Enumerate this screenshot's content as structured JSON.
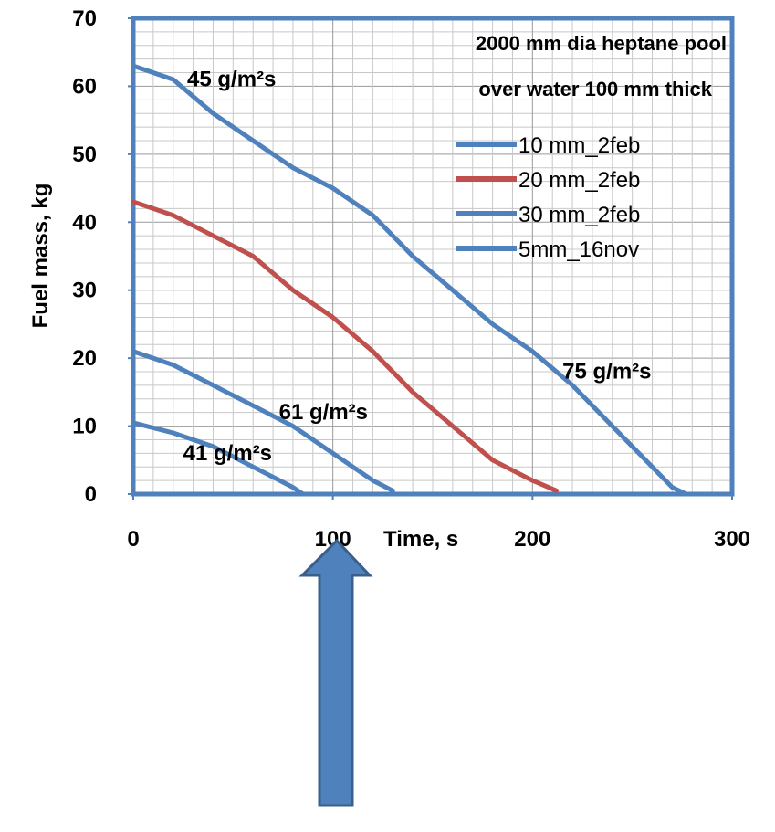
{
  "chart_data": {
    "type": "line",
    "title_lines": [
      "2000 mm dia heptane pool",
      "over water 100 mm thick"
    ],
    "xlabel": "Time, s",
    "ylabel": "Fuel mass, kg",
    "xlim": [
      0,
      300
    ],
    "ylim": [
      0,
      70
    ],
    "xticks": [
      0,
      100,
      200,
      300
    ],
    "yticks": [
      0,
      10,
      20,
      30,
      40,
      50,
      60,
      70
    ],
    "grid": true,
    "legend_position": "top-right",
    "series": [
      {
        "name": "10 mm_2feb",
        "color": "#4f81bd",
        "points": [
          [
            0,
            21
          ],
          [
            20,
            19
          ],
          [
            40,
            16
          ],
          [
            60,
            13
          ],
          [
            80,
            10
          ],
          [
            100,
            6
          ],
          [
            110,
            4
          ],
          [
            120,
            2
          ],
          [
            130,
            0.5
          ]
        ]
      },
      {
        "name": "20 mm_2feb",
        "color": "#c0504d",
        "points": [
          [
            0,
            43
          ],
          [
            20,
            41
          ],
          [
            40,
            38
          ],
          [
            60,
            35
          ],
          [
            80,
            30
          ],
          [
            100,
            26
          ],
          [
            120,
            21
          ],
          [
            140,
            15
          ],
          [
            160,
            10
          ],
          [
            180,
            5
          ],
          [
            200,
            2
          ],
          [
            212,
            0.5
          ]
        ]
      },
      {
        "name": "30 mm_2feb",
        "color": "#4f81bd",
        "points": [
          [
            0,
            63
          ],
          [
            20,
            61
          ],
          [
            40,
            56
          ],
          [
            60,
            52
          ],
          [
            80,
            48
          ],
          [
            100,
            45
          ],
          [
            120,
            41
          ],
          [
            140,
            35
          ],
          [
            160,
            30
          ],
          [
            180,
            25
          ],
          [
            200,
            21
          ],
          [
            220,
            16
          ],
          [
            240,
            10
          ],
          [
            260,
            4
          ],
          [
            270,
            1
          ],
          [
            277,
            0
          ]
        ]
      },
      {
        "name": "5mm_16nov",
        "color": "#4f81bd",
        "points": [
          [
            0,
            10.5
          ],
          [
            20,
            9
          ],
          [
            40,
            7
          ],
          [
            60,
            4
          ],
          [
            70,
            2.5
          ],
          [
            80,
            1
          ],
          [
            85,
            0
          ]
        ]
      }
    ],
    "annotations": [
      {
        "text": "45 g/m²s",
        "x": 27,
        "y": 60
      },
      {
        "text": "61 g/m²s",
        "x": 73,
        "y": 11
      },
      {
        "text": "41 g/m²s",
        "x": 25,
        "y": 5
      },
      {
        "text": "75 g/m²s",
        "x": 215,
        "y": 17
      }
    ]
  },
  "arrow": {
    "color": "#4f81bd",
    "stroke": "#3a5f8a",
    "direction": "up",
    "points_to_x": 100
  }
}
